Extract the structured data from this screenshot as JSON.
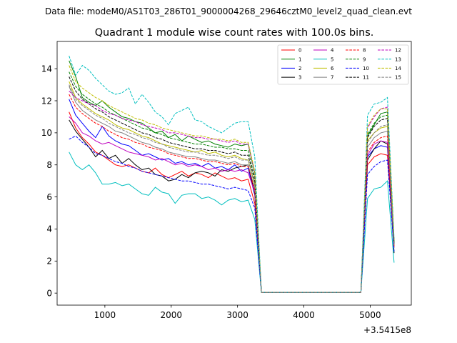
{
  "chart_data": {
    "type": "line",
    "suptitle": "Data file: modeM0/AS1T03_286T01_9000004268_29646cztM0_level2_quad_clean.evt",
    "title": "Quadrant 1 module wise count rates with 100.0s bins.",
    "xlabel": "",
    "ylabel": "",
    "offset_label": "+3.5415e8",
    "xlim": [
      280,
      5620
    ],
    "ylim": [
      -0.75,
      15.7
    ],
    "xticks": [
      1000,
      2000,
      3000,
      4000,
      5000
    ],
    "xtick_labels": [
      "1000",
      "2000",
      "3000",
      "4000",
      "5000"
    ],
    "yticks": [
      0,
      2,
      4,
      6,
      8,
      10,
      12,
      14
    ],
    "ytick_labels": [
      "0",
      "2",
      "4",
      "6",
      "8",
      "10",
      "12",
      "14"
    ],
    "legend_position": "upper right",
    "legend_columns": 4,
    "x": [
      460,
      560,
      660,
      760,
      860,
      960,
      1060,
      1160,
      1260,
      1360,
      1460,
      1560,
      1660,
      1760,
      1860,
      1960,
      2060,
      2160,
      2260,
      2360,
      2460,
      2560,
      2660,
      2760,
      2860,
      2960,
      3060,
      3160,
      3260,
      3360,
      3460,
      3560,
      3660,
      3760,
      3860,
      3960,
      4060,
      4160,
      4260,
      4360,
      4460,
      4560,
      4660,
      4760,
      4860,
      4960,
      5060,
      5160,
      5260,
      5360
    ],
    "series": [
      {
        "name": "0",
        "color": "#ff0000",
        "dash": "solid",
        "values": [
          11.3,
          10.3,
          9.7,
          9.3,
          8.8,
          8.6,
          8.3,
          8.0,
          7.9,
          8.0,
          7.8,
          7.6,
          7.5,
          7.8,
          7.4,
          7.2,
          7.4,
          7.6,
          7.3,
          7.5,
          7.4,
          7.2,
          7.5,
          7.3,
          7.1,
          7.2,
          7.0,
          7.1,
          5.6,
          0.05,
          0.05,
          0.05,
          0.05,
          0.05,
          0.05,
          0.05,
          0.05,
          0.05,
          0.05,
          0.05,
          0.05,
          0.05,
          0.05,
          0.05,
          0.05,
          8.0,
          8.5,
          8.7,
          8.6,
          3.0
        ]
      },
      {
        "name": "1",
        "color": "#008000",
        "dash": "solid",
        "values": [
          14.5,
          13.5,
          12.2,
          11.9,
          11.7,
          12.0,
          11.6,
          11.3,
          11.0,
          10.9,
          10.7,
          10.6,
          10.3,
          10.0,
          10.1,
          9.7,
          9.9,
          9.5,
          9.8,
          9.6,
          9.4,
          9.5,
          9.3,
          9.2,
          9.1,
          9.3,
          9.2,
          9.3,
          7.5,
          0.05,
          0.05,
          0.05,
          0.05,
          0.05,
          0.05,
          0.05,
          0.05,
          0.05,
          0.05,
          0.05,
          0.05,
          0.05,
          0.05,
          0.05,
          0.05,
          9.8,
          10.5,
          11.2,
          11.3,
          3.2
        ]
      },
      {
        "name": "2",
        "color": "#0000ff",
        "dash": "solid",
        "values": [
          12.1,
          11.1,
          10.6,
          10.1,
          9.7,
          10.4,
          9.8,
          9.5,
          9.3,
          9.2,
          8.9,
          8.6,
          8.7,
          8.5,
          8.3,
          8.4,
          8.1,
          8.2,
          8.0,
          8.1,
          7.9,
          8.1,
          7.8,
          7.9,
          7.7,
          8.0,
          7.6,
          7.8,
          6.1,
          0.05,
          0.05,
          0.05,
          0.05,
          0.05,
          0.05,
          0.05,
          0.05,
          0.05,
          0.05,
          0.05,
          0.05,
          0.05,
          0.05,
          0.05,
          0.05,
          8.5,
          9.0,
          9.2,
          9.1,
          3.0
        ]
      },
      {
        "name": "3",
        "color": "#000000",
        "dash": "solid",
        "values": [
          10.8,
          10.1,
          9.6,
          9.1,
          8.5,
          8.9,
          8.4,
          8.6,
          8.1,
          8.4,
          8.0,
          7.7,
          7.8,
          7.4,
          7.3,
          7.0,
          7.1,
          7.4,
          7.2,
          7.5,
          7.6,
          7.5,
          7.3,
          7.7,
          7.6,
          7.8,
          7.9,
          8.0,
          6.2,
          0.05,
          0.05,
          0.05,
          0.05,
          0.05,
          0.05,
          0.05,
          0.05,
          0.05,
          0.05,
          0.05,
          0.05,
          0.05,
          0.05,
          0.05,
          0.05,
          8.3,
          9.0,
          9.5,
          9.3,
          2.5
        ]
      },
      {
        "name": "4",
        "color": "#bf00bf",
        "dash": "solid",
        "values": [
          11.0,
          10.6,
          10.0,
          9.8,
          9.5,
          9.3,
          9.4,
          9.2,
          9.0,
          8.8,
          8.7,
          8.6,
          8.5,
          8.3,
          8.4,
          8.2,
          8.0,
          8.1,
          7.9,
          8.0,
          7.9,
          7.7,
          7.8,
          7.6,
          7.7,
          7.6,
          7.7,
          7.5,
          6.3,
          0.05,
          0.05,
          0.05,
          0.05,
          0.05,
          0.05,
          0.05,
          0.05,
          0.05,
          0.05,
          0.05,
          0.05,
          0.05,
          0.05,
          0.05,
          0.05,
          8.6,
          9.3,
          9.5,
          9.4,
          2.9
        ]
      },
      {
        "name": "5",
        "color": "#00bfbf",
        "dash": "solid",
        "values": [
          8.8,
          8.0,
          7.7,
          8.0,
          7.5,
          6.8,
          6.8,
          6.9,
          6.7,
          6.8,
          6.5,
          6.2,
          6.1,
          6.6,
          6.3,
          6.2,
          5.6,
          6.1,
          6.2,
          6.2,
          5.9,
          6.0,
          5.8,
          5.5,
          5.8,
          5.9,
          5.7,
          5.8,
          4.6,
          0.05,
          0.05,
          0.05,
          0.05,
          0.05,
          0.05,
          0.05,
          0.05,
          0.05,
          0.05,
          0.05,
          0.05,
          0.05,
          0.05,
          0.05,
          0.05,
          5.9,
          6.5,
          6.6,
          7.0,
          1.9
        ]
      },
      {
        "name": "6",
        "color": "#bfbf00",
        "dash": "solid",
        "values": [
          13.2,
          12.2,
          11.8,
          11.5,
          11.2,
          11.0,
          10.8,
          10.5,
          10.3,
          10.2,
          10.0,
          9.8,
          9.7,
          9.5,
          9.3,
          9.2,
          9.1,
          9.0,
          8.9,
          8.8,
          8.9,
          8.7,
          8.8,
          8.6,
          8.5,
          8.6,
          8.4,
          8.3,
          6.8,
          0.05,
          0.05,
          0.05,
          0.05,
          0.05,
          0.05,
          0.05,
          0.05,
          0.05,
          0.05,
          0.05,
          0.05,
          0.05,
          0.05,
          0.05,
          0.05,
          9.5,
          10.0,
          10.3,
          10.4,
          3.0
        ]
      },
      {
        "name": "7",
        "color": "#808080",
        "dash": "solid",
        "values": [
          12.9,
          11.9,
          11.4,
          11.1,
          10.8,
          10.6,
          10.4,
          10.1,
          10.0,
          9.8,
          9.6,
          9.4,
          9.3,
          9.1,
          9.0,
          8.8,
          8.7,
          8.6,
          8.5,
          8.5,
          8.4,
          8.3,
          8.3,
          8.2,
          8.1,
          8.2,
          8.0,
          8.0,
          6.5,
          0.05,
          0.05,
          0.05,
          0.05,
          0.05,
          0.05,
          0.05,
          0.05,
          0.05,
          0.05,
          0.05,
          0.05,
          0.05,
          0.05,
          0.05,
          0.05,
          9.1,
          9.7,
          10.0,
          10.1,
          2.8
        ]
      },
      {
        "name": "8",
        "color": "#ff0000",
        "dash": "dashed",
        "values": [
          12.4,
          11.6,
          11.2,
          10.9,
          10.6,
          10.4,
          10.1,
          9.9,
          9.7,
          9.6,
          9.4,
          9.3,
          9.1,
          9.0,
          8.9,
          8.7,
          8.6,
          8.5,
          8.4,
          8.4,
          8.3,
          8.2,
          8.2,
          8.1,
          8.0,
          8.1,
          7.9,
          7.9,
          6.4,
          0.05,
          0.05,
          0.05,
          0.05,
          0.05,
          0.05,
          0.05,
          0.05,
          0.05,
          0.05,
          0.05,
          0.05,
          0.05,
          0.05,
          0.05,
          0.05,
          8.8,
          9.4,
          9.7,
          9.8,
          2.9
        ]
      },
      {
        "name": "9",
        "color": "#008000",
        "dash": "dashed",
        "values": [
          13.8,
          12.9,
          12.4,
          12.1,
          11.8,
          11.6,
          11.3,
          11.1,
          10.9,
          10.7,
          10.5,
          10.3,
          10.2,
          10.0,
          9.9,
          9.7,
          9.6,
          9.5,
          9.4,
          9.3,
          9.3,
          9.2,
          9.1,
          9.1,
          9.0,
          9.0,
          8.9,
          8.9,
          7.2,
          0.05,
          0.05,
          0.05,
          0.05,
          0.05,
          0.05,
          0.05,
          0.05,
          0.05,
          0.05,
          0.05,
          0.05,
          0.05,
          0.05,
          0.05,
          0.05,
          9.9,
          10.6,
          11.0,
          11.1,
          3.2
        ]
      },
      {
        "name": "10",
        "color": "#0000ff",
        "dash": "dashed",
        "values": [
          9.6,
          9.8,
          9.4,
          9.1,
          8.7,
          8.6,
          8.4,
          8.2,
          8.1,
          7.9,
          7.8,
          7.6,
          7.5,
          7.4,
          7.3,
          7.2,
          7.1,
          7.0,
          7.0,
          6.9,
          6.8,
          6.8,
          6.7,
          6.6,
          6.5,
          6.6,
          6.5,
          6.4,
          5.3,
          0.05,
          0.05,
          0.05,
          0.05,
          0.05,
          0.05,
          0.05,
          0.05,
          0.05,
          0.05,
          0.05,
          0.05,
          0.05,
          0.05,
          0.05,
          0.05,
          7.4,
          7.9,
          8.2,
          8.3,
          2.6
        ]
      },
      {
        "name": "11",
        "color": "#000000",
        "dash": "dashed",
        "values": [
          13.5,
          12.6,
          12.1,
          11.8,
          11.5,
          11.3,
          11.0,
          10.8,
          10.6,
          10.4,
          10.2,
          10.0,
          9.9,
          9.7,
          9.6,
          9.4,
          9.3,
          9.2,
          9.1,
          9.0,
          9.0,
          8.9,
          8.9,
          8.8,
          8.7,
          8.8,
          8.6,
          8.6,
          7.0,
          0.05,
          0.05,
          0.05,
          0.05,
          0.05,
          0.05,
          0.05,
          0.05,
          0.05,
          0.05,
          0.05,
          0.05,
          0.05,
          0.05,
          0.05,
          0.05,
          9.7,
          10.4,
          10.8,
          10.9,
          3.1
        ]
      },
      {
        "name": "12",
        "color": "#bf00bf",
        "dash": "dashed",
        "values": [
          12.6,
          12.2,
          12.0,
          11.8,
          11.7,
          11.4,
          11.2,
          11.1,
          10.9,
          10.8,
          10.7,
          10.5,
          10.4,
          10.3,
          10.2,
          10.0,
          10.0,
          9.9,
          9.8,
          9.7,
          9.7,
          9.6,
          9.6,
          9.5,
          9.4,
          9.5,
          9.3,
          9.3,
          7.5,
          0.05,
          0.05,
          0.05,
          0.05,
          0.05,
          0.05,
          0.05,
          0.05,
          0.05,
          0.05,
          0.05,
          0.05,
          0.05,
          0.05,
          0.05,
          0.05,
          10.3,
          11.0,
          11.5,
          11.6,
          3.3
        ]
      },
      {
        "name": "13",
        "color": "#00bfbf",
        "dash": "dashed",
        "values": [
          14.8,
          13.6,
          14.2,
          13.9,
          13.4,
          13.0,
          12.6,
          12.4,
          12.5,
          12.8,
          11.8,
          12.4,
          11.9,
          11.3,
          11.0,
          10.5,
          11.2,
          11.4,
          11.6,
          10.8,
          10.7,
          10.4,
          10.2,
          10.0,
          10.3,
          10.6,
          10.7,
          10.7,
          8.5,
          0.05,
          0.05,
          0.05,
          0.05,
          0.05,
          0.05,
          0.05,
          0.05,
          0.05,
          0.05,
          0.05,
          0.05,
          0.05,
          0.05,
          0.05,
          0.05,
          11.1,
          11.8,
          11.9,
          12.2,
          3.4
        ]
      },
      {
        "name": "14",
        "color": "#bfbf00",
        "dash": "dashed",
        "values": [
          14.2,
          13.2,
          12.8,
          12.5,
          12.2,
          12.0,
          11.7,
          11.5,
          11.3,
          11.1,
          10.9,
          10.8,
          10.6,
          10.5,
          10.3,
          10.2,
          10.1,
          10.0,
          9.9,
          9.8,
          9.8,
          9.7,
          9.6,
          9.6,
          9.5,
          9.6,
          9.4,
          9.4,
          7.6,
          0.05,
          0.05,
          0.05,
          0.05,
          0.05,
          0.05,
          0.05,
          0.05,
          0.05,
          0.05,
          0.05,
          0.05,
          0.05,
          0.05,
          0.05,
          0.05,
          10.4,
          11.1,
          11.5,
          11.5,
          3.3
        ]
      },
      {
        "name": "15",
        "color": "#808080",
        "dash": "dashed",
        "values": [
          13.0,
          12.1,
          11.7,
          11.4,
          11.1,
          10.9,
          10.6,
          10.4,
          10.2,
          10.0,
          9.9,
          9.7,
          9.6,
          9.4,
          9.3,
          9.1,
          9.0,
          8.9,
          8.8,
          8.8,
          8.7,
          8.6,
          8.6,
          8.5,
          8.4,
          8.5,
          8.3,
          8.3,
          6.7,
          0.05,
          0.05,
          0.05,
          0.05,
          0.05,
          0.05,
          0.05,
          0.05,
          0.05,
          0.05,
          0.05,
          0.05,
          0.05,
          0.05,
          0.05,
          0.05,
          9.4,
          10.0,
          10.4,
          10.5,
          3.0
        ]
      }
    ]
  }
}
